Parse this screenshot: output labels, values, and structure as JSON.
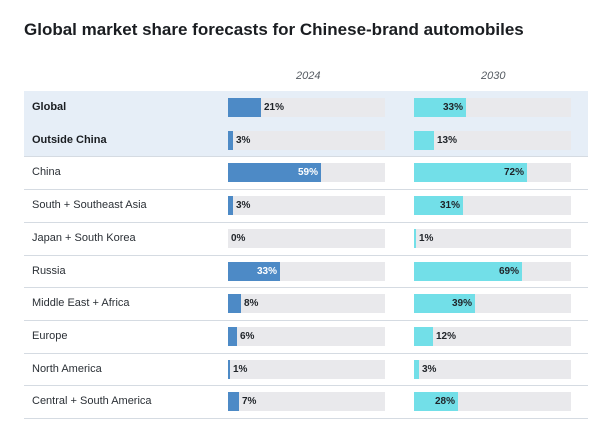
{
  "chart_data": {
    "type": "bar",
    "title": "Global market share forecasts for Chinese-brand automobiles",
    "categories": [
      "Global",
      "Outside China",
      "China",
      "South + Southeast Asia",
      "Japan + South Korea",
      "Russia",
      "Middle East + Africa",
      "Europe",
      "North America",
      "Central + South America"
    ],
    "highlighted_categories": [
      "Global",
      "Outside China"
    ],
    "series": [
      {
        "name": "2024",
        "values": [
          21,
          3,
          59,
          3,
          0,
          33,
          8,
          6,
          1,
          7
        ],
        "color": "#4d8ac6"
      },
      {
        "name": "2030",
        "values": [
          33,
          13,
          72,
          31,
          1,
          69,
          39,
          12,
          3,
          28
        ],
        "color": "#72dfe8"
      }
    ],
    "value_suffix": "%",
    "track_color": "#e9e9ec",
    "highlight_color": "#e6eef7",
    "xlim": [
      0,
      100
    ],
    "orientation": "horizontal"
  }
}
